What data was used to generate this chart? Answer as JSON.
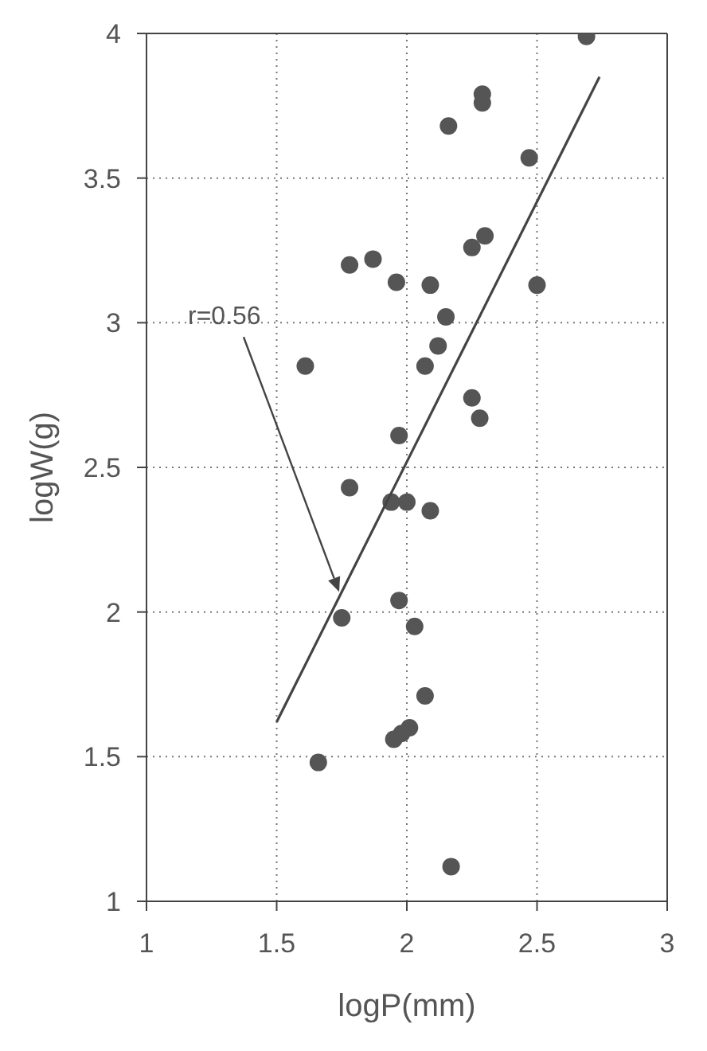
{
  "chart_data": {
    "type": "scatter",
    "xlabel": "logP(mm)",
    "ylabel": "logW(g)",
    "xlim": [
      1,
      3
    ],
    "xticks": [
      1,
      1.5,
      2,
      2.5,
      3
    ],
    "ylim": [
      1,
      4
    ],
    "yticks": [
      1,
      1.5,
      2,
      2.5,
      3,
      3.5,
      4
    ],
    "grid": true,
    "marker": "circle",
    "series": [
      {
        "color": "#555555",
        "x": [
          2.69,
          2.29,
          2.29,
          2.16,
          2.47,
          2.3,
          2.25,
          1.78,
          1.87,
          1.96,
          2.09,
          2.5,
          2.15,
          2.12,
          2.07,
          1.61,
          2.25,
          2.28,
          1.97,
          1.78,
          1.94,
          2.0,
          2.09,
          1.97,
          1.75,
          2.03,
          2.07,
          2.01,
          1.98,
          1.95,
          1.66,
          2.17
        ],
        "values": [
          3.99,
          3.79,
          3.76,
          3.68,
          3.57,
          3.3,
          3.26,
          3.2,
          3.22,
          3.14,
          3.13,
          3.13,
          3.02,
          2.92,
          2.85,
          2.85,
          2.74,
          2.67,
          2.61,
          2.43,
          2.38,
          2.38,
          2.35,
          2.04,
          1.98,
          1.95,
          1.71,
          1.6,
          1.58,
          1.56,
          1.48,
          1.12
        ]
      },
      {
        "type": "line",
        "marker": "none",
        "color": "#444444",
        "x": [
          1.5,
          2.74
        ],
        "values": [
          1.62,
          3.85
        ]
      }
    ],
    "annotations": [
      {
        "text": "r=0.56",
        "x": 1.74,
        "y": 2.07
      }
    ]
  }
}
